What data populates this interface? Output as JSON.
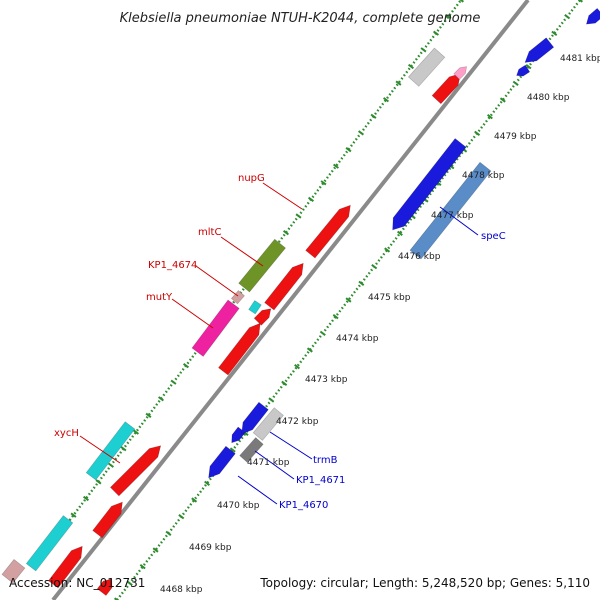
{
  "title": "Klebsiella pneumoniae NTUH-K2044, complete genome",
  "footer": {
    "accession": "Accession: NC_012731",
    "topology": "Topology: circular; Length: 5,248,520 bp; Genes: 5,110"
  },
  "scale_labels": [
    "4468 kbp",
    "4469 kbp",
    "4470 kbp",
    "4471 kbp",
    "4472 kbp",
    "4473 kbp",
    "4474 kbp",
    "4475 kbp",
    "4476 kbp",
    "4477 kbp",
    "4478 kbp",
    "4479 kbp",
    "4480 kbp",
    "4481 kbp"
  ],
  "gene_labels": {
    "nupG": "nupG",
    "mltC": "mltC",
    "KP1_4674": "KP1_4674",
    "mutY": "mutY",
    "xycH": "xycH",
    "speC": "speC",
    "trmB": "trmB",
    "KP1_4671": "KP1_4671",
    "KP1_4670": "KP1_4670"
  },
  "colors": {
    "red": "#ee1111",
    "blue": "#1a1adc",
    "steelblue": "#5a8cc8",
    "cyan": "#1ecfd2",
    "magenta": "#ee22a0",
    "olive": "#6e9428",
    "gray": "#c8c8c8",
    "darkgray": "#7a7a7a",
    "pink": "#ff9ec8",
    "tan": "#d2a0a0",
    "backbone": "#8a8a8a",
    "ticks": "#2e8b2e",
    "label_red": "#cc0000",
    "label_blue": "#0000cc"
  }
}
